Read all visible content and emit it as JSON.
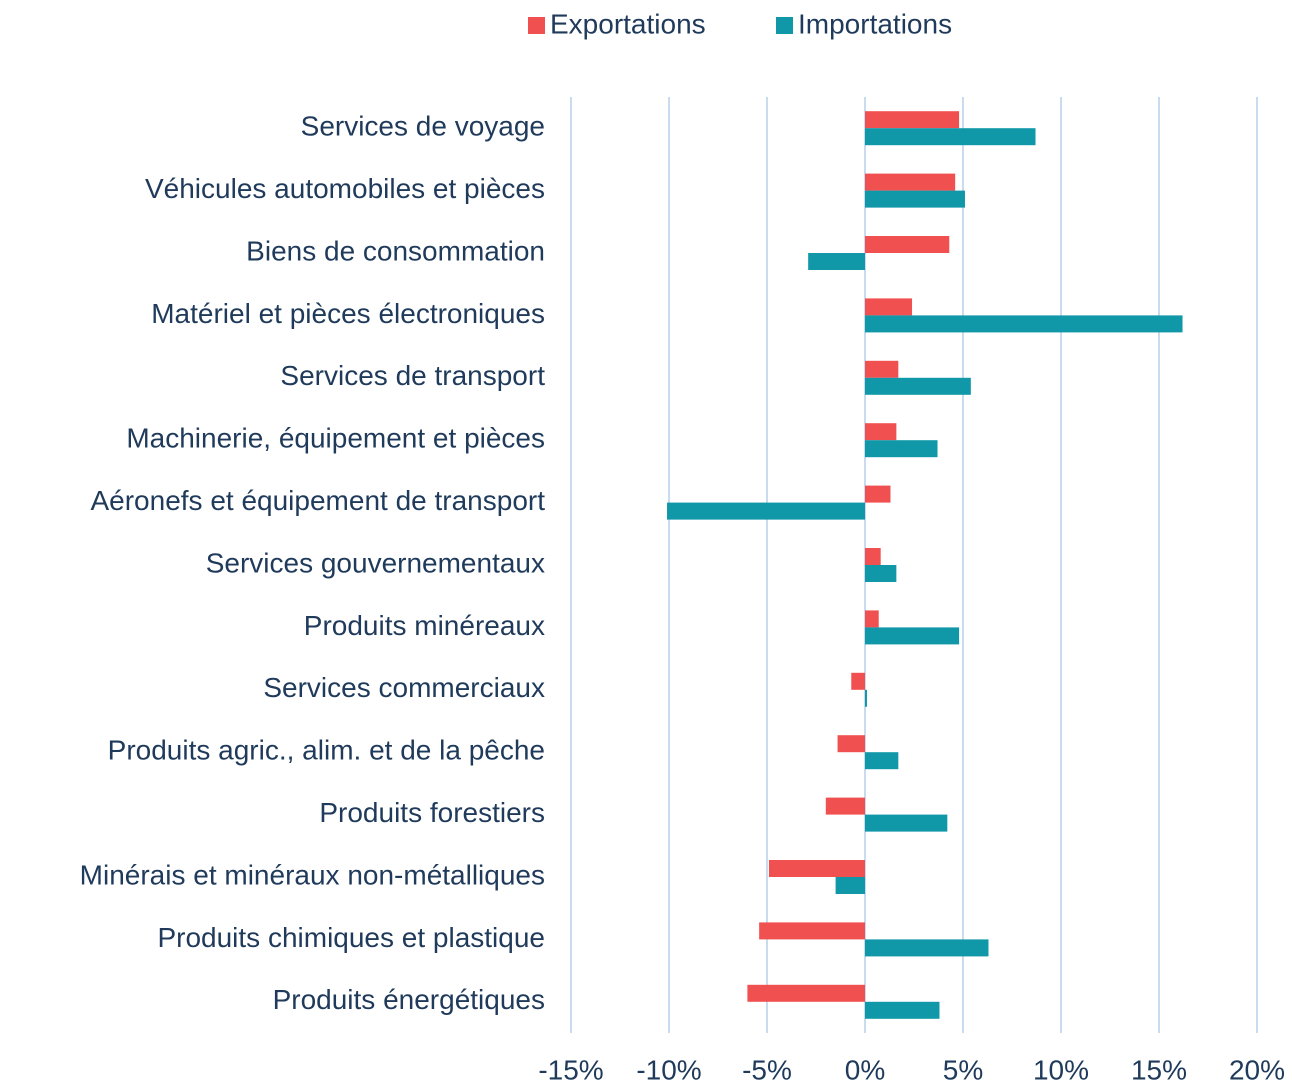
{
  "chart_data": {
    "type": "barh",
    "categories": [
      "Services de voyage",
      "Véhicules automobiles et pièces",
      "Biens de consommation",
      "Matériel et pièces électroniques",
      "Services de transport",
      "Machinerie, équipement et pièces",
      "Aéronefs et équipement de transport",
      "Services gouvernementaux",
      "Produits minéreaux",
      "Services commerciaux",
      "Produits agric., alim. et de la pêche",
      "Produits forestiers",
      "Minérais et minéraux non-métalliques",
      "Produits chimiques et plastique",
      "Produits énergétiques"
    ],
    "series": [
      {
        "name": "Exportations",
        "color": "#f0504f",
        "values": [
          4.8,
          4.6,
          4.3,
          2.4,
          1.7,
          1.6,
          1.3,
          0.8,
          0.7,
          -0.7,
          -1.4,
          -2.0,
          -4.9,
          -5.4,
          -6.0
        ]
      },
      {
        "name": "Importations",
        "color": "#1097a8",
        "values": [
          8.7,
          5.1,
          -2.9,
          16.2,
          5.4,
          3.7,
          -10.1,
          1.6,
          4.8,
          0.1,
          1.7,
          4.2,
          -1.5,
          6.3,
          3.8
        ]
      }
    ],
    "xlim": [
      -15,
      20
    ],
    "xticks": [
      {
        "value": -15,
        "label": "-15%"
      },
      {
        "value": -10,
        "label": "-10%"
      },
      {
        "value": -5,
        "label": "-5%"
      },
      {
        "value": 0,
        "label": "0%"
      },
      {
        "value": 5,
        "label": "5%"
      },
      {
        "value": 10,
        "label": "10%"
      },
      {
        "value": 15,
        "label": "15%"
      },
      {
        "value": 20,
        "label": "20%"
      }
    ],
    "grid": true,
    "legend": "top"
  }
}
